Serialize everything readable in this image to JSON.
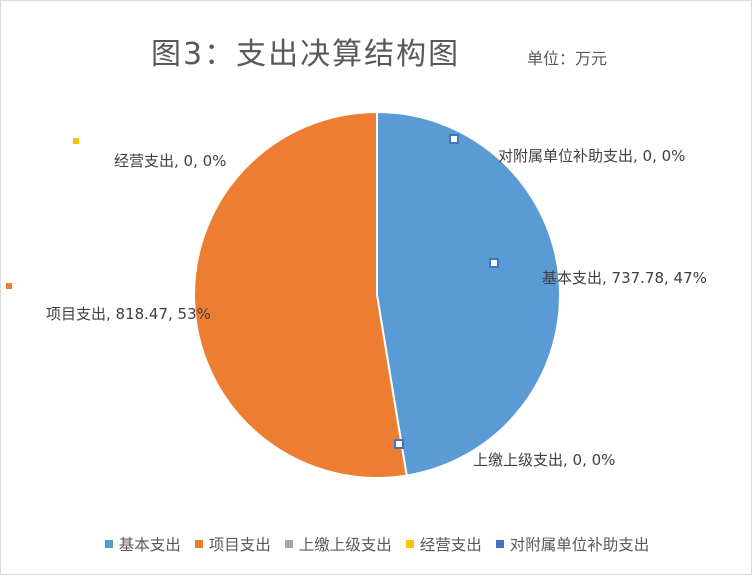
{
  "chart_data": {
    "type": "pie",
    "title": "图3：支出决算结构图",
    "unit": "单位：万元",
    "series": [
      {
        "name": "基本支出",
        "value": 737.78,
        "percent": "47%",
        "color": "#5B9BD5",
        "label": "基本支出, 737.78, 47%"
      },
      {
        "name": "项目支出",
        "value": 818.47,
        "percent": "53%",
        "color": "#ED7D31",
        "label": "项目支出, 818.47, 53%"
      },
      {
        "name": "上缴上级支出",
        "value": 0,
        "percent": "0%",
        "color": "#A5A5A5",
        "label": "上缴上级支出, 0, 0%"
      },
      {
        "name": "经营支出",
        "value": 0,
        "percent": "0%",
        "color": "#FFC000",
        "label": "经营支出, 0, 0%"
      },
      {
        "name": "对附属单位补助支出",
        "value": 0,
        "percent": "0%",
        "color": "#4472C4",
        "label": "对附属单位补助支出, 0, 0%"
      }
    ],
    "legend_position": "bottom"
  }
}
